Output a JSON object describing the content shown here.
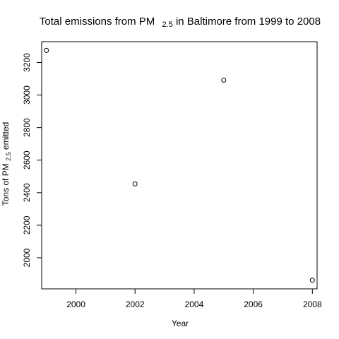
{
  "chart_data": {
    "type": "scatter",
    "title": {
      "before": "Total emissions from PM",
      "subscript": "2.5",
      "after": " in Baltimore from 1999 to 2008"
    },
    "xlabel": "Year",
    "ylabel": {
      "before": "Tons of PM",
      "subscript": "2.5",
      "after": " emitted"
    },
    "xlim": [
      1998.84,
      2008.16
    ],
    "ylim": [
      1809,
      3328
    ],
    "xticks": [
      2000,
      2002,
      2004,
      2006,
      2008
    ],
    "yticks": [
      2000,
      2200,
      2400,
      2600,
      2800,
      3000,
      3200
    ],
    "grid": false,
    "legend": "none",
    "points": [
      {
        "x": 1999,
        "y": 3274.18
      },
      {
        "x": 2002,
        "y": 2453.92
      },
      {
        "x": 2005,
        "y": 3091.35
      },
      {
        "x": 2008,
        "y": 1862.28
      }
    ]
  }
}
